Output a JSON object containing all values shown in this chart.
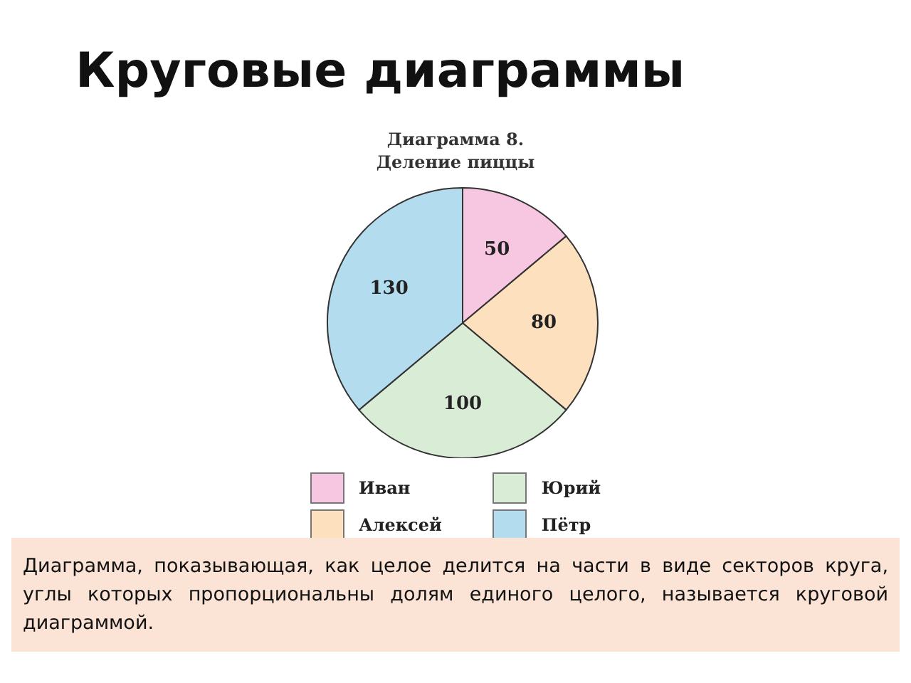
{
  "chart_data": {
    "type": "pie",
    "title": "Круговые диаграммы",
    "subtitle": "Диаграмма 8.\nДеление пиццы",
    "categories": [
      "Иван",
      "Алексей",
      "Юрий",
      "Пётр"
    ],
    "values": [
      50,
      80,
      100,
      130
    ],
    "colors": [
      "#f7c6e0",
      "#fde0bd",
      "#d9ecd6",
      "#b3ddef"
    ],
    "data_labels": true,
    "legend": "bottom",
    "annotations": [
      "Диаграмма, показывающая, как целое делится на части в виде секторов круга, углы которых пропорциональны долям единого целого, называется круговой диаграммой."
    ]
  }
}
